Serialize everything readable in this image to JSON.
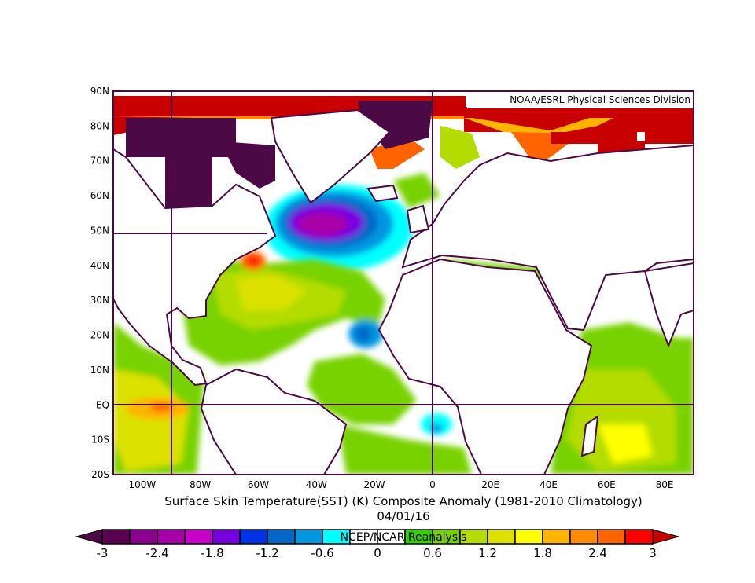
{
  "map": {
    "credit": "NOAA/ESRL Physical Sciences Division",
    "title": "Surface Skin Temperature(SST) (K) Composite Anomaly (1981-2010 Climatology)",
    "date": "04/01/16",
    "overlay_label": "NCEP/NCAR Reanalysis",
    "extent": {
      "lon": [
        -110,
        90
      ],
      "lat": [
        -20,
        90
      ]
    },
    "lat_labels": [
      "90N",
      "80N",
      "70N",
      "60N",
      "50N",
      "40N",
      "30N",
      "20N",
      "10N",
      "EQ",
      "10S",
      "20S"
    ],
    "lon_labels": [
      "100W",
      "80W",
      "60W",
      "40W",
      "20W",
      "0",
      "20E",
      "40E",
      "60E",
      "80E"
    ],
    "coastline_color": "#4b0a46"
  },
  "colorbar": {
    "min": -3,
    "max": 3,
    "step": 0.3,
    "tick_labels": [
      "-3",
      "-2.4",
      "-1.8",
      "-1.2",
      "-0.6",
      "0",
      "0.6",
      "1.2",
      "1.8",
      "2.4",
      "3"
    ],
    "under_color": "#4b0a46",
    "over_color": "#c80000",
    "colors": [
      "#5a0050",
      "#8c0090",
      "#a800a8",
      "#c800c8",
      "#7800e0",
      "#0032e6",
      "#0068c8",
      "#0096e0",
      "#00ffff",
      "#ffffff",
      "#ffffff",
      "#32d200",
      "#78d200",
      "#b4dc00",
      "#dce100",
      "#ffff00",
      "#ffb400",
      "#ff8c00",
      "#ff6400",
      "#ff0000"
    ]
  }
}
